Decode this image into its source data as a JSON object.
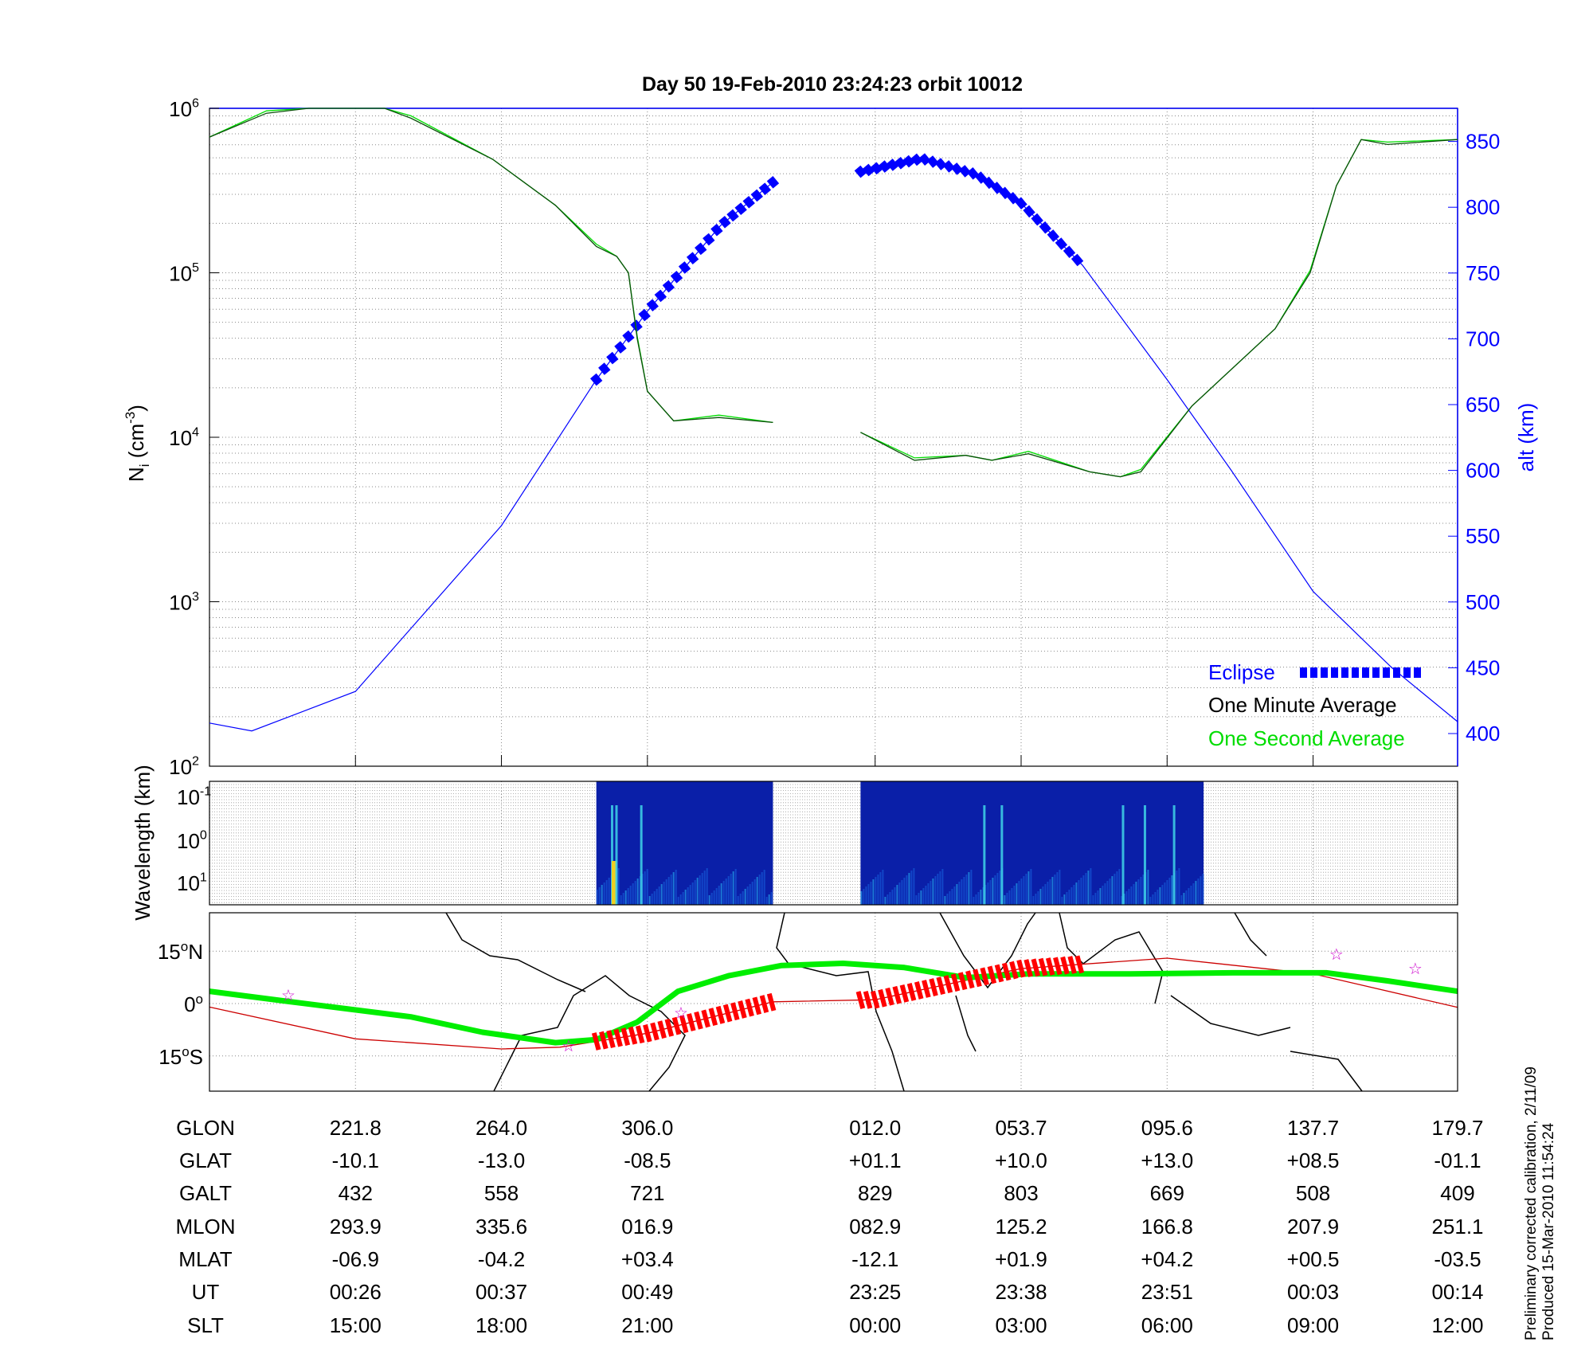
{
  "title": "Day 50  19-Feb-2010 23:24:23   orbit 10012",
  "colors": {
    "alt": "#0000ff",
    "eclipse": "#0000ff",
    "minute_avg": "#0b4f0b",
    "second_avg": "#00dd00",
    "track": "#00ee00",
    "orbit": "#cc0000",
    "eclipse_track": "#ff0000",
    "star": "#cc00cc"
  },
  "chart_data": [
    {
      "type": "line",
      "title": "Day 50  19-Feb-2010 23:24:23   orbit 10012",
      "x_unit": "tick columns (data gap between col 3 and 4.56)",
      "xlim": [
        0,
        8.55
      ],
      "x_ticks": [
        1,
        2,
        3,
        4.56,
        5.56,
        6.56,
        7.56,
        8.55
      ],
      "ylabel": "N",
      "ylabel_sub": "i",
      "ylabel_unit": "(cm",
      "ylabel_exp": "-3",
      "ylabel_close": ")",
      "y_scale": "log",
      "ylim_log10": [
        2,
        6
      ],
      "y_tick_labels": [
        {
          "base": "10",
          "exp": "2"
        },
        {
          "base": "10",
          "exp": "3"
        },
        {
          "base": "10",
          "exp": "4"
        },
        {
          "base": "10",
          "exp": "5"
        },
        {
          "base": "10",
          "exp": "6"
        }
      ],
      "y2label": "alt (km)",
      "y2lim": [
        375,
        875
      ],
      "y2_ticks": [
        400,
        450,
        500,
        550,
        600,
        650,
        700,
        750,
        800,
        850
      ],
      "grid": true,
      "legend": {
        "placement": "bottom-right",
        "entries": [
          "Eclipse",
          "One Minute Average",
          "One Second Average"
        ]
      },
      "series": [
        {
          "name": "alt",
          "axis": "right",
          "segments": [
            [
              [
                0,
                408
              ],
              [
                0.29,
                402
              ],
              [
                1,
                432
              ],
              [
                2,
                558
              ],
              [
                2.65,
                669
              ],
              [
                3,
                721
              ],
              [
                3.5,
                786
              ],
              [
                3.86,
                819
              ]
            ],
            [
              [
                4.46,
                827
              ],
              [
                4.88,
                837
              ],
              [
                5.25,
                825
              ],
              [
                5.56,
                803
              ],
              [
                5.98,
                756
              ],
              [
                6.56,
                669
              ],
              [
                7.0,
                600
              ],
              [
                7.56,
                508
              ],
              [
                8.1,
                450
              ],
              [
                8.55,
                409
              ]
            ]
          ]
        },
        {
          "name": "Eclipse",
          "axis": "right",
          "ranges": [
            [
              2.65,
              3.86
            ],
            [
              4.46,
              5.98
            ]
          ]
        },
        {
          "name": "One Minute Average",
          "axis": "left",
          "log10_segments": [
            [
              [
                0,
                5.825
              ],
              [
                0.39,
                5.97
              ],
              [
                0.68,
                6
              ],
              [
                1.2,
                6
              ],
              [
                1.38,
                5.94
              ],
              [
                1.94,
                5.69
              ],
              [
                2.37,
                5.41
              ],
              [
                2.65,
                5.16
              ],
              [
                2.79,
                5.1
              ],
              [
                2.87,
                5.0
              ],
              [
                2.93,
                4.6
              ],
              [
                3.0,
                4.28
              ],
              [
                3.18,
                4.1
              ],
              [
                3.49,
                4.12
              ],
              [
                3.86,
                4.09
              ]
            ],
            [
              [
                4.46,
                4.03
              ],
              [
                4.83,
                3.86
              ],
              [
                5.18,
                3.89
              ],
              [
                5.36,
                3.86
              ],
              [
                5.61,
                3.9
              ],
              [
                6.03,
                3.79
              ],
              [
                6.24,
                3.76
              ],
              [
                6.38,
                3.79
              ],
              [
                6.73,
                4.19
              ],
              [
                7.3,
                4.66
              ],
              [
                7.54,
                5.0
              ],
              [
                7.72,
                5.53
              ],
              [
                7.89,
                5.81
              ],
              [
                8.07,
                5.78
              ],
              [
                8.55,
                5.81
              ]
            ]
          ]
        }
      ]
    },
    {
      "type": "heatmap",
      "ylabel": "Wavelength (km)",
      "y_tick_labels": [
        {
          "base": "10",
          "exp": "-1"
        },
        {
          "base": "10",
          "exp": "0"
        },
        {
          "base": "10",
          "exp": "1"
        }
      ],
      "data_ranges": [
        [
          2.65,
          3.86
        ],
        [
          4.46,
          6.81
        ]
      ],
      "bright_streaks": [
        2.75,
        2.78,
        2.95,
        5.3,
        5.42,
        6.25,
        6.4,
        6.6
      ]
    },
    {
      "type": "line",
      "subtype": "map",
      "y_tick_labels": [
        {
          "deg": "15",
          "hem": "N",
          "lat": 15
        },
        {
          "deg": "0",
          "hem": "",
          "lat": 0
        },
        {
          "deg": "15",
          "hem": "S",
          "lat": -15
        }
      ],
      "series": [
        {
          "name": "green track",
          "points": [
            [
              0,
              3.5
            ],
            [
              0.54,
              0.6
            ],
            [
              1.38,
              -3.8
            ],
            [
              1.87,
              -8.2
            ],
            [
              2.37,
              -11.2
            ],
            [
              2.65,
              -10.3
            ],
            [
              2.93,
              -5.3
            ],
            [
              3.21,
              3.5
            ],
            [
              3.56,
              8
            ],
            [
              3.92,
              10.9
            ],
            [
              4.34,
              11.5
            ],
            [
              4.76,
              10.3
            ],
            [
              5.18,
              7.4
            ],
            [
              5.61,
              8.5
            ],
            [
              6.31,
              8.5
            ],
            [
              7.01,
              8.8
            ],
            [
              7.65,
              8.8
            ],
            [
              8.07,
              6.5
            ],
            [
              8.55,
              3.5
            ]
          ]
        },
        {
          "name": "orbit",
          "points": [
            [
              0,
              -1
            ],
            [
              1,
              -10.1
            ],
            [
              2,
              -13.0
            ],
            [
              2.4,
              -12.5
            ],
            [
              3,
              -8.5
            ],
            [
              3.86,
              0.5
            ],
            [
              4.56,
              1.1
            ],
            [
              5.56,
              10
            ],
            [
              6.56,
              13
            ],
            [
              7.56,
              8.5
            ],
            [
              8.55,
              -1.1
            ]
          ]
        },
        {
          "name": "eclipse on orbit",
          "ranges": [
            [
              2.65,
              3.86
            ],
            [
              4.46,
              5.98
            ]
          ]
        },
        {
          "name": "stars",
          "points": [
            [
              0.54,
              2.6
            ],
            [
              2.46,
              -11.8
            ],
            [
              3.23,
              -2.4
            ],
            [
              7.72,
              14.4
            ],
            [
              8.26,
              10.3
            ]
          ]
        }
      ]
    },
    {
      "type": "table",
      "rows": [
        {
          "label": "GLON",
          "values": [
            "221.8",
            "264.0",
            "306.0",
            "012.0",
            "053.7",
            "095.6",
            "137.7",
            "179.7"
          ]
        },
        {
          "label": "GLAT",
          "values": [
            "-10.1",
            "-13.0",
            "-08.5",
            "+01.1",
            "+10.0",
            "+13.0",
            "+08.5",
            "-01.1"
          ]
        },
        {
          "label": "GALT",
          "values": [
            "432",
            "558",
            "721",
            "829",
            "803",
            "669",
            "508",
            "409"
          ]
        },
        {
          "label": "MLON",
          "values": [
            "293.9",
            "335.6",
            "016.9",
            "082.9",
            "125.2",
            "166.8",
            "207.9",
            "251.1"
          ]
        },
        {
          "label": "MLAT",
          "values": [
            "-06.9",
            "-04.2",
            "+03.4",
            "-12.1",
            "+01.9",
            "+04.2",
            "+00.5",
            "-03.5"
          ]
        },
        {
          "label": "UT",
          "values": [
            "00:26",
            "00:37",
            "00:49",
            "23:25",
            "23:38",
            "23:51",
            "00:03",
            "00:14"
          ]
        },
        {
          "label": "SLT",
          "values": [
            "15:00",
            "18:00",
            "21:00",
            "00:00",
            "03:00",
            "06:00",
            "09:00",
            "12:00"
          ]
        }
      ]
    }
  ],
  "footer": {
    "line1": "Preliminary corrected calibration, 2/11/09",
    "line2": "Produced 15-Mar-2010 11:54:24"
  }
}
